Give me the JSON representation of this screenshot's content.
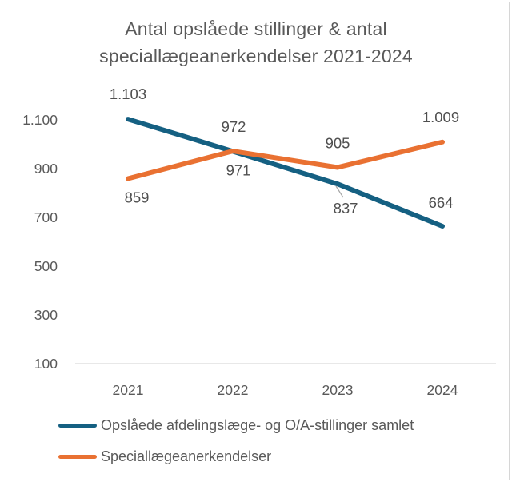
{
  "title": {
    "line1": "Antal opslåede stillinger & antal",
    "line2": "speciallægeanerkendelser 2021-2024"
  },
  "colors": {
    "series_blue": "#156082",
    "series_orange": "#E97132",
    "title_text": "#595959",
    "axis_text": "#595959",
    "data_label_text": "#4F4F4F",
    "axis_line": "#D9D9D9",
    "leader_line": "#A6A6A6",
    "frame_border": "#D6D6D6",
    "background": "#FFFFFF"
  },
  "chart_data": {
    "type": "line",
    "title": "Antal opslåede stillinger & antal speciallægeanerkendelser 2021-2024",
    "categories": [
      "2021",
      "2022",
      "2023",
      "2024"
    ],
    "series": [
      {
        "name": "Opslåede afdelingslæge- og O/A-stillinger samlet",
        "color": "#156082",
        "values": [
          1103,
          971,
          837,
          664
        ],
        "data_labels": [
          "1.103",
          "971",
          "837",
          "664"
        ]
      },
      {
        "name": "Speciallægeanerkendelser",
        "color": "#E97132",
        "values": [
          859,
          972,
          905,
          1009
        ],
        "data_labels": [
          "859",
          "972",
          "905",
          "1.009"
        ]
      }
    ],
    "y_axis": {
      "min": 100,
      "max": 1100,
      "ticks": [
        100,
        300,
        500,
        700,
        900,
        1100
      ],
      "tick_labels": [
        "100",
        "300",
        "500",
        "700",
        "900",
        "1.100"
      ]
    },
    "x_axis": {
      "labels": [
        "2021",
        "2022",
        "2023",
        "2024"
      ]
    },
    "grid": false,
    "legend_position": "bottom"
  }
}
